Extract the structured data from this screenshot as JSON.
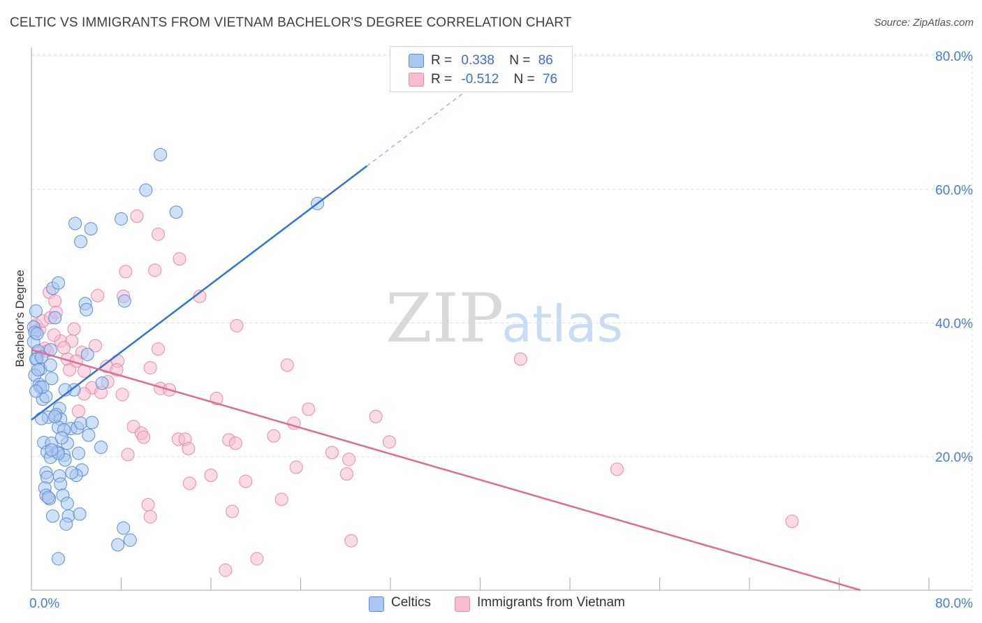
{
  "title": "CELTIC VS IMMIGRANTS FROM VIETNAM BACHELOR'S DEGREE CORRELATION CHART",
  "source": "Source: ZipAtlas.com",
  "watermark": {
    "zip": "ZIP",
    "atlas": "atlas"
  },
  "legend": {
    "rows": [
      {
        "r_label": "R =",
        "r_value": "0.338",
        "n_label": "N =",
        "n_value": "86"
      },
      {
        "r_label": "R =",
        "r_value": "-0.512",
        "n_label": "N =",
        "n_value": "76"
      }
    ]
  },
  "bottom_legend": [
    "Celtics",
    "Immigrants from Vietnam"
  ],
  "colors": {
    "blue_fill": "#a9c7f0",
    "blue_stroke": "#5a8ed8",
    "blue_line": "#2f74d0",
    "pink_fill": "#f6bccf",
    "pink_stroke": "#e88aa8",
    "pink_line": "#e06b96",
    "tick_text": "#4a7bd0",
    "grid": "#dddddd"
  },
  "chart_data": {
    "type": "scatter",
    "title": "CELTIC VS IMMIGRANTS FROM VIETNAM BACHELOR'S DEGREE CORRELATION CHART",
    "xlabel": "",
    "ylabel": "Bachelor's Degree",
    "xlim": [
      0,
      80
    ],
    "ylim": [
      0,
      80
    ],
    "x_tick_labels": [
      "0.0%",
      "80.0%"
    ],
    "y_tick_labels": [
      "20.0%",
      "40.0%",
      "60.0%",
      "80.0%"
    ],
    "y_ticks": [
      20,
      40,
      60,
      80
    ],
    "grid": true,
    "legend_position": "top-center",
    "series": [
      {
        "name": "Celtics",
        "r": 0.338,
        "n": 86,
        "trend": {
          "x0": 0,
          "y0": 25.5,
          "x1": 29.9,
          "y1": 63.5,
          "dash_to_x": 41.3
        },
        "points": [
          [
            0.4,
            41.8
          ],
          [
            0.2,
            39.4
          ],
          [
            0.3,
            38.6
          ],
          [
            0.2,
            37.2
          ],
          [
            0.6,
            35.8
          ],
          [
            0.5,
            34.6
          ],
          [
            0.4,
            34.6
          ],
          [
            0.8,
            33.1
          ],
          [
            0.3,
            32.2
          ],
          [
            0.7,
            30.8
          ],
          [
            0.8,
            30.4
          ],
          [
            1.0,
            28.6
          ],
          [
            1.3,
            29.0
          ],
          [
            1.7,
            36.0
          ],
          [
            1.9,
            45.2
          ],
          [
            2.4,
            46.0
          ],
          [
            2.1,
            40.8
          ],
          [
            1.7,
            33.7
          ],
          [
            1.8,
            31.7
          ],
          [
            2.5,
            27.2
          ],
          [
            2.2,
            26.3
          ],
          [
            1.5,
            25.9
          ],
          [
            2.6,
            25.6
          ],
          [
            2.4,
            24.4
          ],
          [
            1.1,
            22.1
          ],
          [
            1.8,
            22.0
          ],
          [
            1.4,
            20.7
          ],
          [
            2.3,
            20.7
          ],
          [
            2.9,
            20.2
          ],
          [
            3.2,
            22.0
          ],
          [
            3.0,
            19.5
          ],
          [
            1.3,
            17.6
          ],
          [
            1.4,
            16.9
          ],
          [
            2.5,
            17.1
          ],
          [
            2.6,
            15.9
          ],
          [
            1.2,
            15.3
          ],
          [
            1.3,
            14.2
          ],
          [
            1.6,
            13.7
          ],
          [
            2.8,
            14.2
          ],
          [
            3.2,
            13.0
          ],
          [
            1.9,
            11.1
          ],
          [
            3.3,
            11.1
          ],
          [
            3.1,
            9.9
          ],
          [
            2.4,
            4.7
          ],
          [
            3.8,
            30.0
          ],
          [
            3.5,
            24.2
          ],
          [
            4.1,
            24.3
          ],
          [
            4.4,
            25.0
          ],
          [
            4.2,
            20.5
          ],
          [
            4.5,
            18.0
          ],
          [
            4.0,
            17.2
          ],
          [
            4.3,
            11.4
          ],
          [
            3.9,
            54.9
          ],
          [
            4.4,
            52.2
          ],
          [
            4.8,
            42.9
          ],
          [
            4.9,
            42.0
          ],
          [
            5.0,
            35.3
          ],
          [
            5.1,
            23.2
          ],
          [
            5.4,
            25.1
          ],
          [
            5.3,
            54.1
          ],
          [
            6.3,
            31.0
          ],
          [
            6.2,
            21.4
          ],
          [
            8.0,
            55.6
          ],
          [
            8.3,
            43.3
          ],
          [
            10.2,
            59.9
          ],
          [
            11.5,
            65.2
          ],
          [
            12.9,
            56.6
          ],
          [
            8.2,
            9.3
          ],
          [
            8.8,
            7.5
          ],
          [
            7.7,
            6.8
          ],
          [
            25.5,
            57.9
          ],
          [
            0.5,
            38.4
          ],
          [
            0.9,
            34.9
          ],
          [
            0.6,
            33.0
          ],
          [
            1.0,
            30.4
          ],
          [
            0.4,
            29.8
          ],
          [
            2.1,
            26.0
          ],
          [
            2.9,
            24.0
          ],
          [
            1.7,
            19.9
          ],
          [
            2.4,
            20.5
          ],
          [
            1.5,
            13.9
          ],
          [
            3.0,
            30.0
          ],
          [
            0.9,
            25.7
          ],
          [
            1.8,
            21.0
          ],
          [
            2.7,
            22.8
          ],
          [
            3.6,
            17.6
          ]
        ]
      },
      {
        "name": "Immigrants from Vietnam",
        "r": -0.512,
        "n": 76,
        "trend": {
          "x0": 0,
          "y0": 36.0,
          "x1": 73.9,
          "y1": 0
        },
        "points": [
          [
            0.4,
            39.7
          ],
          [
            0.7,
            39.0
          ],
          [
            1.0,
            40.3
          ],
          [
            1.7,
            40.8
          ],
          [
            1.2,
            36.2
          ],
          [
            1.6,
            44.6
          ],
          [
            2.1,
            43.3
          ],
          [
            2.2,
            41.6
          ],
          [
            0.6,
            35.5
          ],
          [
            1.4,
            35.8
          ],
          [
            2.6,
            37.3
          ],
          [
            3.2,
            34.6
          ],
          [
            3.4,
            33.0
          ],
          [
            3.6,
            37.3
          ],
          [
            2.9,
            36.3
          ],
          [
            4.5,
            35.6
          ],
          [
            4.0,
            34.3
          ],
          [
            4.7,
            32.8
          ],
          [
            5.7,
            36.6
          ],
          [
            5.9,
            44.1
          ],
          [
            5.4,
            30.3
          ],
          [
            6.2,
            29.6
          ],
          [
            6.8,
            31.2
          ],
          [
            6.7,
            33.5
          ],
          [
            7.7,
            34.3
          ],
          [
            7.6,
            33.0
          ],
          [
            8.1,
            29.3
          ],
          [
            8.2,
            44.0
          ],
          [
            8.4,
            47.7
          ],
          [
            9.1,
            24.5
          ],
          [
            9.4,
            56.0
          ],
          [
            9.8,
            23.5
          ],
          [
            10.0,
            22.9
          ],
          [
            11.3,
            53.3
          ],
          [
            11.0,
            47.9
          ],
          [
            11.3,
            36.1
          ],
          [
            10.6,
            33.3
          ],
          [
            11.5,
            30.2
          ],
          [
            12.3,
            30.0
          ],
          [
            13.2,
            49.6
          ],
          [
            13.1,
            22.6
          ],
          [
            13.7,
            22.6
          ],
          [
            14.0,
            21.2
          ],
          [
            14.1,
            16.0
          ],
          [
            15.0,
            44.0
          ],
          [
            16.5,
            28.7
          ],
          [
            16.0,
            17.2
          ],
          [
            17.6,
            22.5
          ],
          [
            18.2,
            22.0
          ],
          [
            17.9,
            11.8
          ],
          [
            18.3,
            39.6
          ],
          [
            19.1,
            16.3
          ],
          [
            20.1,
            4.7
          ],
          [
            21.6,
            23.1
          ],
          [
            22.3,
            13.6
          ],
          [
            22.8,
            33.7
          ],
          [
            23.4,
            25.0
          ],
          [
            23.6,
            18.4
          ],
          [
            24.7,
            27.1
          ],
          [
            26.8,
            20.6
          ],
          [
            28.1,
            17.4
          ],
          [
            28.3,
            19.6
          ],
          [
            28.5,
            7.4
          ],
          [
            30.7,
            26.0
          ],
          [
            31.9,
            22.2
          ],
          [
            17.3,
            3.0
          ],
          [
            10.4,
            12.8
          ],
          [
            10.6,
            11.0
          ],
          [
            8.6,
            20.3
          ],
          [
            4.7,
            29.4
          ],
          [
            4.2,
            26.8
          ],
          [
            2.0,
            38.2
          ],
          [
            43.6,
            34.6
          ],
          [
            52.2,
            18.1
          ],
          [
            67.8,
            10.3
          ],
          [
            3.8,
            39.1
          ]
        ]
      }
    ]
  }
}
